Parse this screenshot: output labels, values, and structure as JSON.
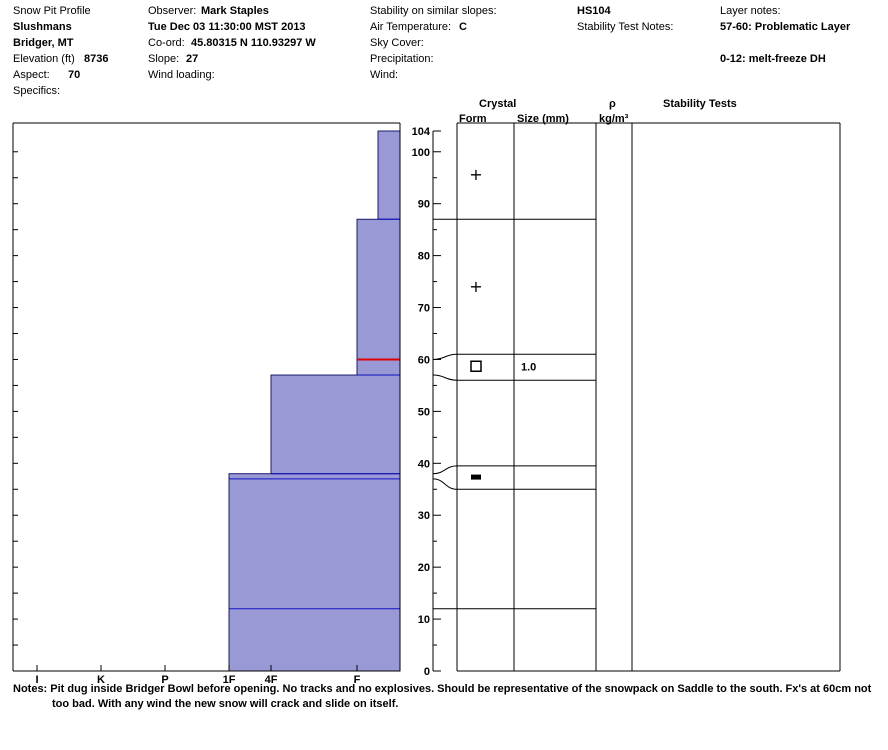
{
  "header": {
    "profile_title": "Snow Pit Profile",
    "location_name": "Slushmans",
    "region": "Bridger, MT",
    "elevation_label": "Elevation (ft)",
    "elevation_value": "8736",
    "aspect_label": "Aspect:",
    "aspect_value": "70",
    "specifics_label": "Specifics:",
    "observer_label": "Observer:",
    "observer_value": "Mark Staples",
    "datetime": "Tue Dec 03 11:30:00 MST 2013",
    "coord_label": "Co-ord:",
    "coord_value": "45.80315 N 110.93297 W",
    "slope_label": "Slope:",
    "slope_value": "27",
    "wind_loading_label": "Wind loading:",
    "stability_label": "Stability on similar slopes:",
    "air_temp_label": "Air Temperature:",
    "air_temp_value": "C",
    "sky_cover_label": "Sky Cover:",
    "precip_label": "Precipitation:",
    "wind_label": "Wind:",
    "hs": "HS104",
    "stability_notes_label": "Stability Test Notes:",
    "layer_notes_label": "Layer notes:",
    "layer_note_1": "57-60: Problematic Layer",
    "layer_note_2": "0-12: melt-freeze DH"
  },
  "columns": {
    "crystal": "Crystal",
    "form": "Form",
    "size": "Size (mm)",
    "rho": "ρ",
    "density_unit": "kg/m³",
    "stability_tests": "Stability Tests"
  },
  "notes": {
    "line1": "Notes:  Pit dug inside Bridger Bowl before opening. No tracks and no explosives. Should be representative of the snowpack on Saddle to the south. Fx's at 60cm not",
    "line2": "too bad. With any wind the new snow will crack and slide on itself."
  },
  "chart_data": {
    "type": "area",
    "title": "",
    "hardness_scale": [
      "I",
      "K",
      "P",
      "1F",
      "4F",
      "F"
    ],
    "depth_ticks": [
      0,
      10,
      20,
      30,
      40,
      50,
      60,
      70,
      80,
      90,
      100,
      104
    ],
    "ylim": [
      0,
      104
    ],
    "layers": [
      {
        "top": 104,
        "bottom": 87,
        "hardness": "F+"
      },
      {
        "top": 87,
        "bottom": 57,
        "hardness": "F"
      },
      {
        "top": 57,
        "bottom": 38,
        "hardness": "4F"
      },
      {
        "top": 38,
        "bottom": 0,
        "hardness": "1F"
      }
    ],
    "boundaries": [
      87,
      57,
      38,
      37,
      12
    ],
    "weak_layer_depth": 60,
    "crystal_rows": [
      {
        "top": 104,
        "bottom": 87,
        "form": "+",
        "size": ""
      },
      {
        "top": 87,
        "bottom": 61,
        "form": "+",
        "size": ""
      },
      {
        "top": 61,
        "bottom": 56,
        "form": "□",
        "size": "1.0"
      },
      {
        "top": 56,
        "bottom": 39.5,
        "form": "",
        "size": ""
      },
      {
        "top": 39.5,
        "bottom": 35,
        "form": "■",
        "size": ""
      },
      {
        "top": 35,
        "bottom": 12,
        "form": "",
        "size": ""
      },
      {
        "top": 12,
        "bottom": 0,
        "form": "",
        "size": ""
      }
    ],
    "colors": {
      "fill": "#9999d6",
      "layer_line": "#1515c8",
      "weak_layer": "#e00000"
    }
  }
}
